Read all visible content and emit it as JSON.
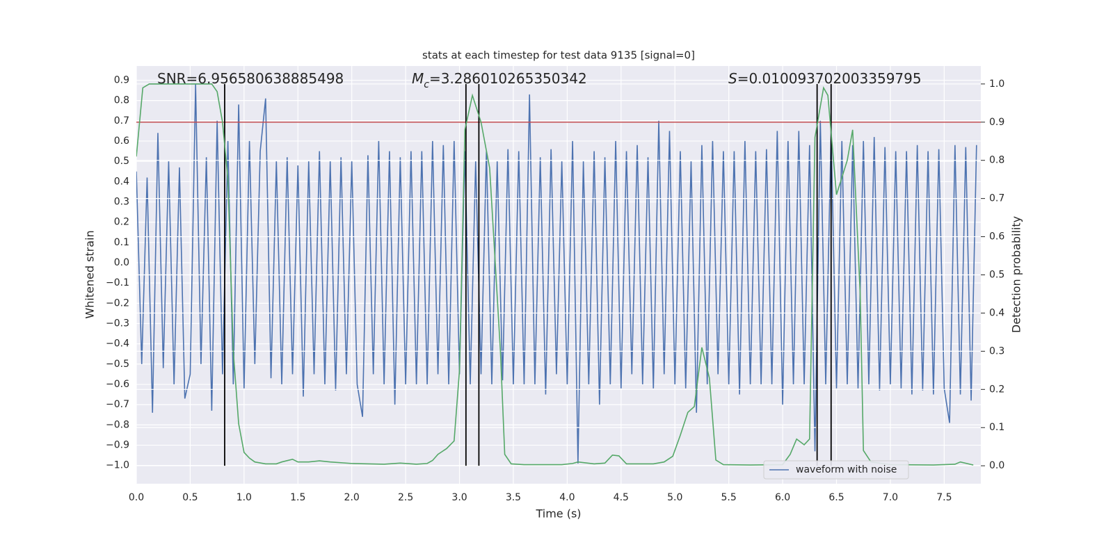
{
  "chart_data": {
    "type": "line",
    "title": "stats at each timestep for test data 9135 [signal=0]",
    "xlabel": "Time (s)",
    "ylabel": "Whitened strain",
    "y2label": "Detection probability",
    "xlim": [
      0,
      7.84
    ],
    "ylim": [
      -1.09,
      0.97
    ],
    "y2lim": [
      -0.047,
      1.047
    ],
    "xticks": [
      {
        "value": 0,
        "label": "0.0"
      },
      0.5,
      {
        "value": 1,
        "label": "1.0"
      },
      1.5,
      {
        "value": 2,
        "label": "2.0"
      },
      2.5,
      {
        "value": 3,
        "label": "3.0"
      },
      3.5,
      {
        "value": 4,
        "label": "4.0"
      },
      4.5,
      {
        "value": 5,
        "label": "5.0"
      },
      5.5,
      {
        "value": 6,
        "label": "6.0"
      },
      6.5,
      {
        "value": 7,
        "label": "7.0"
      },
      7.5
    ],
    "yticks": [
      {
        "value": -1,
        "label": "−1.0"
      },
      {
        "value": -0.9,
        "label": "−0.9"
      },
      {
        "value": -0.8,
        "label": "−0.8"
      },
      {
        "value": -0.7,
        "label": "−0.7"
      },
      {
        "value": -0.6,
        "label": "−0.6"
      },
      {
        "value": -0.5,
        "label": "−0.5"
      },
      {
        "value": -0.4,
        "label": "−0.4"
      },
      {
        "value": -0.3,
        "label": "−0.3"
      },
      {
        "value": -0.2,
        "label": "−0.2"
      },
      {
        "value": -0.1,
        "label": "−0.1"
      },
      {
        "value": 0,
        "label": "0.0"
      },
      0.1,
      0.2,
      0.3,
      0.4,
      0.5,
      0.6,
      0.7,
      0.8,
      0.9
    ],
    "y2ticks": [
      {
        "value": 0,
        "label": "0.0"
      },
      0.1,
      0.2,
      0.3,
      0.4,
      0.5,
      0.6,
      0.7,
      0.8,
      0.9,
      {
        "value": 1,
        "label": "1.0"
      }
    ],
    "grid": true,
    "legend": "lower right",
    "annotations": [
      {
        "text": "SNR=6.956580638885498"
      },
      {
        "symbol": "M",
        "subscript": "c",
        "text": "=3.286010265350342"
      },
      {
        "symbol": "S",
        "text": "=0.010093702003359795"
      }
    ],
    "hline": {
      "y2": 0.9,
      "color": "#c44e52"
    },
    "vlines": {
      "x": [
        0.82,
        3.06,
        3.18,
        6.32,
        6.45
      ],
      "y2range": [
        0,
        1
      ],
      "color": "#000000"
    },
    "series": [
      {
        "name": "waveform with noise",
        "color": "#4c72b0",
        "x": [
          0,
          0.05,
          0.1,
          0.15,
          0.2,
          0.25,
          0.3,
          0.35,
          0.4,
          0.45,
          0.5,
          0.55,
          0.6,
          0.65,
          0.7,
          0.75,
          0.8,
          0.85,
          0.9,
          0.95,
          1,
          1.05,
          1.1,
          1.15,
          1.2,
          1.25,
          1.3,
          1.35,
          1.4,
          1.45,
          1.5,
          1.55,
          1.6,
          1.65,
          1.7,
          1.75,
          1.8,
          1.85,
          1.9,
          1.95,
          2,
          2.05,
          2.1,
          2.15,
          2.2,
          2.25,
          2.3,
          2.35,
          2.4,
          2.45,
          2.5,
          2.55,
          2.6,
          2.65,
          2.7,
          2.75,
          2.8,
          2.85,
          2.9,
          2.95,
          3,
          3.05,
          3.1,
          3.15,
          3.2,
          3.25,
          3.3,
          3.35,
          3.4,
          3.45,
          3.5,
          3.55,
          3.6,
          3.65,
          3.7,
          3.75,
          3.8,
          3.85,
          3.9,
          3.95,
          4,
          4.05,
          4.1,
          4.15,
          4.2,
          4.25,
          4.3,
          4.35,
          4.4,
          4.45,
          4.5,
          4.55,
          4.6,
          4.65,
          4.7,
          4.75,
          4.8,
          4.85,
          4.9,
          4.95,
          5,
          5.05,
          5.1,
          5.15,
          5.2,
          5.25,
          5.3,
          5.35,
          5.4,
          5.45,
          5.5,
          5.55,
          5.6,
          5.65,
          5.7,
          5.75,
          5.8,
          5.85,
          5.9,
          5.95,
          6,
          6.05,
          6.1,
          6.15,
          6.2,
          6.25,
          6.3,
          6.35,
          6.4,
          6.45,
          6.5,
          6.55,
          6.6,
          6.65,
          6.7,
          6.75,
          6.8,
          6.85,
          6.9,
          6.95,
          7,
          7.05,
          7.1,
          7.15,
          7.2,
          7.25,
          7.3,
          7.35,
          7.4,
          7.45,
          7.5,
          7.55,
          7.6,
          7.65,
          7.7,
          7.75,
          7.8
        ],
        "values": [
          0.45,
          -0.5,
          0.42,
          -0.74,
          0.64,
          -0.52,
          0.5,
          -0.6,
          0.47,
          -0.67,
          -0.55,
          0.88,
          -0.5,
          0.52,
          -0.73,
          0.7,
          -0.55,
          0.6,
          -0.6,
          0.78,
          -0.62,
          0.6,
          -0.5,
          0.55,
          0.81,
          -0.57,
          0.5,
          -0.6,
          0.52,
          -0.55,
          0.48,
          -0.66,
          0.5,
          -0.55,
          0.55,
          -0.6,
          0.5,
          -0.63,
          0.52,
          -0.55,
          0.5,
          -0.6,
          -0.76,
          0.53,
          -0.55,
          0.6,
          -0.6,
          0.55,
          -0.7,
          0.52,
          -0.6,
          0.55,
          -0.6,
          0.55,
          -0.6,
          0.6,
          -0.55,
          0.58,
          -0.6,
          0.6,
          -0.55,
          0.55,
          -0.6,
          0.5,
          -0.55,
          0.55,
          -0.6,
          0.5,
          -0.58,
          0.56,
          -0.6,
          0.55,
          -0.6,
          0.83,
          -0.6,
          0.52,
          -0.65,
          0.56,
          -0.55,
          0.5,
          -0.6,
          0.6,
          -0.99,
          0.5,
          -0.6,
          0.55,
          -0.7,
          0.52,
          -0.6,
          0.6,
          -0.62,
          0.55,
          -0.55,
          0.58,
          -0.6,
          0.52,
          -0.62,
          0.7,
          -0.55,
          0.65,
          -0.6,
          0.55,
          -0.62,
          0.5,
          -0.74,
          0.58,
          -0.6,
          0.6,
          -0.55,
          0.55,
          -0.6,
          0.55,
          -0.65,
          0.6,
          -0.6,
          0.55,
          -0.6,
          0.56,
          -0.6,
          0.65,
          -0.7,
          0.6,
          -0.6,
          0.65,
          -0.6,
          0.58,
          -0.93,
          0.7,
          -0.6,
          0.65,
          -0.62,
          0.6,
          -0.6,
          0.58,
          -0.62,
          0.6,
          -0.6,
          0.62,
          -0.63,
          0.57,
          -0.6,
          0.55,
          -0.62,
          0.55,
          -0.65,
          0.58,
          -0.63,
          0.55,
          -0.65,
          0.56,
          -0.62,
          -0.79,
          0.58,
          -0.65,
          0.57,
          -0.68,
          0.58
        ]
      },
      {
        "color": "#55a868",
        "axis": "y2",
        "x": [
          0,
          0.06,
          0.12,
          0.3,
          0.5,
          0.7,
          0.75,
          0.8,
          0.85,
          0.9,
          0.95,
          1,
          1.05,
          1.1,
          1.2,
          1.3,
          1.35,
          1.45,
          1.5,
          1.6,
          1.7,
          1.8,
          2,
          2.3,
          2.45,
          2.6,
          2.7,
          2.75,
          2.8,
          2.88,
          2.95,
          3,
          3.05,
          3.12,
          3.2,
          3.28,
          3.38,
          3.42,
          3.48,
          3.6,
          3.95,
          4.05,
          4.1,
          4.25,
          4.35,
          4.42,
          4.48,
          4.55,
          4.8,
          4.9,
          4.98,
          5.05,
          5.12,
          5.18,
          5.25,
          5.32,
          5.38,
          5.45,
          5.7,
          6,
          6.07,
          6.13,
          6.2,
          6.25,
          6.3,
          6.38,
          6.42,
          6.5,
          6.6,
          6.65,
          6.72,
          6.75,
          6.82,
          7,
          7.4,
          7.6,
          7.65,
          7.77
        ],
        "values": [
          0.81,
          0.99,
          1,
          1,
          1,
          1,
          0.98,
          0.9,
          0.75,
          0.3,
          0.11,
          0.035,
          0.02,
          0.01,
          0.005,
          0.005,
          0.01,
          0.017,
          0.01,
          0.01,
          0.013,
          0.01,
          0.006,
          0.004,
          0.007,
          0.004,
          0.006,
          0.014,
          0.03,
          0.045,
          0.065,
          0.25,
          0.88,
          0.97,
          0.9,
          0.78,
          0.3,
          0.03,
          0.005,
          0.003,
          0.003,
          0.006,
          0.01,
          0.005,
          0.007,
          0.028,
          0.026,
          0.005,
          0.005,
          0.01,
          0.025,
          0.08,
          0.14,
          0.155,
          0.31,
          0.23,
          0.015,
          0.003,
          0.002,
          0.003,
          0.03,
          0.07,
          0.055,
          0.07,
          0.86,
          0.99,
          0.97,
          0.71,
          0.8,
          0.88,
          0.45,
          0.04,
          0.01,
          0.003,
          0.002,
          0.004,
          0.01,
          0.002
        ]
      }
    ]
  }
}
